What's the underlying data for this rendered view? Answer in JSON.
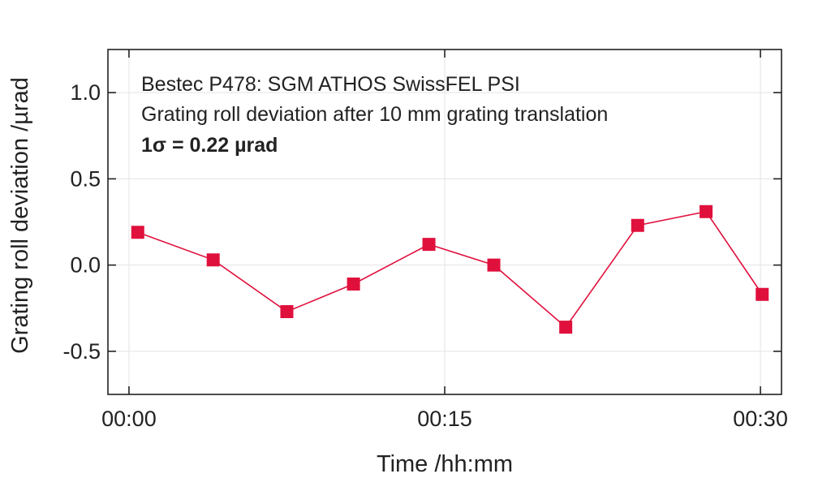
{
  "chart_data": {
    "type": "line",
    "xlabel": "Time /hh:mm",
    "ylabel": "Grating roll deviation /µrad",
    "xlim": [
      "-00:01",
      "00:31"
    ],
    "ylim": [
      -0.75,
      1.25
    ],
    "x_ticks": [
      "00:00",
      "00:15",
      "00:30"
    ],
    "y_ticks": [
      "-0.5",
      "0.0",
      "0.5",
      "1.0"
    ],
    "grid": true,
    "annotations": [
      "Bestec P478: SGM ATHOS SwissFEL PSI",
      "Grating roll deviation after 10 mm grating translation",
      "1σ = 0.22 µrad"
    ],
    "series": [
      {
        "marker": "square",
        "color": "#e0103c",
        "x": [
          "00:00:25",
          "00:04:00",
          "00:07:30",
          "00:10:40",
          "00:14:15",
          "00:17:20",
          "00:20:45",
          "00:24:10",
          "00:27:25",
          "00:30:05"
        ],
        "y": [
          0.19,
          0.03,
          -0.27,
          -0.11,
          0.12,
          0.0,
          -0.36,
          0.23,
          0.31,
          -0.17
        ]
      }
    ]
  }
}
